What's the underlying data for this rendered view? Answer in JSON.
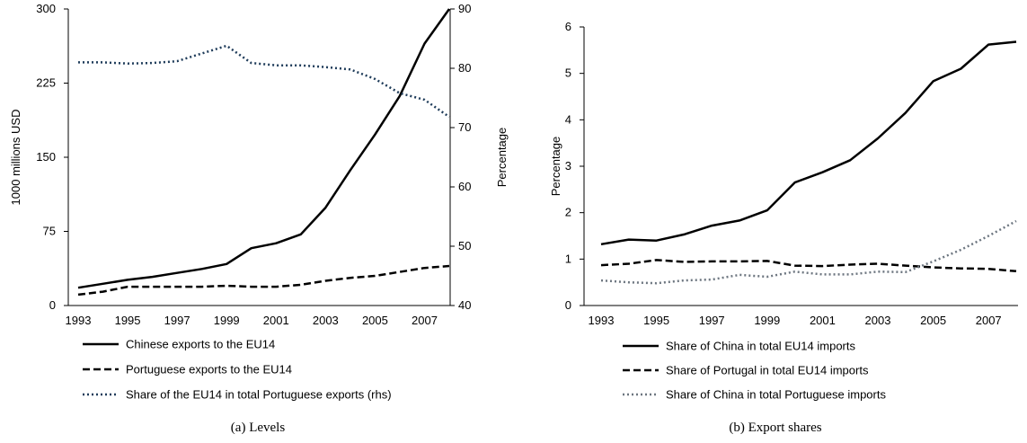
{
  "chart_data": [
    {
      "type": "line",
      "caption": "(a) Levels",
      "x": [
        1993,
        1994,
        1995,
        1996,
        1997,
        1998,
        1999,
        2000,
        2001,
        2002,
        2003,
        2004,
        2005,
        2006,
        2007,
        2008
      ],
      "x_ticks": [
        "1993",
        "1995",
        "1997",
        "1999",
        "2001",
        "2003",
        "2005",
        "2007"
      ],
      "ylabel": "1000 millions USD",
      "ylim": [
        0,
        300
      ],
      "y_ticks": [
        "0",
        "75",
        "150",
        "225",
        "300"
      ],
      "ylabel_right": "Percentage",
      "ylim_right": [
        40,
        90
      ],
      "y_ticks_right": [
        "40",
        "50",
        "60",
        "70",
        "80",
        "90"
      ],
      "series": [
        {
          "name": "Chinese exports to the EU14",
          "axis": "left",
          "style": "solid",
          "color": "#000000",
          "values": [
            18,
            22,
            26,
            29,
            33,
            37,
            42,
            58,
            63,
            72,
            99,
            137,
            173,
            212,
            265,
            300
          ]
        },
        {
          "name": "Portuguese exports to the EU14",
          "axis": "left",
          "style": "dashed",
          "color": "#000000",
          "values": [
            11,
            14,
            19,
            19,
            19,
            19,
            20,
            19,
            19,
            21,
            25,
            28,
            30,
            34,
            38,
            40
          ]
        },
        {
          "name": "Share of the EU14 in total Portuguese exports (rhs)",
          "axis": "right",
          "style": "dotted",
          "color": "#1f3c5a",
          "values": [
            81,
            81,
            80.8,
            80.9,
            81.2,
            82.5,
            83.8,
            80.9,
            80.5,
            80.5,
            80.2,
            79.8,
            78.2,
            75.8,
            74.7,
            71.8
          ]
        }
      ]
    },
    {
      "type": "line",
      "caption": "(b) Export shares",
      "x": [
        1993,
        1994,
        1995,
        1996,
        1997,
        1998,
        1999,
        2000,
        2001,
        2002,
        2003,
        2004,
        2005,
        2006,
        2007,
        2008
      ],
      "x_ticks": [
        "1993",
        "1995",
        "1997",
        "1999",
        "2001",
        "2003",
        "2005",
        "2007"
      ],
      "ylabel": "Percentage",
      "ylim": [
        0,
        6
      ],
      "y_ticks": [
        "0",
        "1",
        "2",
        "3",
        "4",
        "5",
        "6"
      ],
      "series": [
        {
          "name": "Share of China in total EU14 imports",
          "style": "solid",
          "color": "#000000",
          "values": [
            1.32,
            1.42,
            1.4,
            1.53,
            1.72,
            1.83,
            2.05,
            2.65,
            2.87,
            3.13,
            3.6,
            4.15,
            4.83,
            5.1,
            5.62,
            5.68
          ]
        },
        {
          "name": "Share of Portugal in total EU14 imports",
          "style": "dashed",
          "color": "#000000",
          "values": [
            0.87,
            0.9,
            0.98,
            0.94,
            0.95,
            0.95,
            0.96,
            0.86,
            0.85,
            0.88,
            0.9,
            0.86,
            0.82,
            0.8,
            0.79,
            0.74
          ]
        },
        {
          "name": "Share of China in total Portuguese imports",
          "style": "dotted",
          "color": "#6d7680",
          "values": [
            0.54,
            0.5,
            0.48,
            0.54,
            0.56,
            0.66,
            0.62,
            0.73,
            0.67,
            0.67,
            0.73,
            0.72,
            0.95,
            1.2,
            1.5,
            1.82
          ]
        }
      ]
    }
  ]
}
